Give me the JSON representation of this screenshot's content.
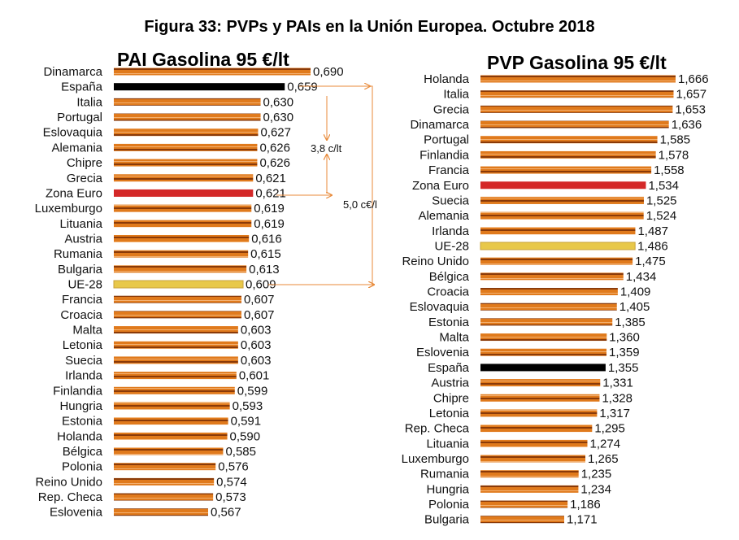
{
  "title": "Figura 33: PVPs y PAIs en la Unión Europea. Octubre 2018",
  "colors": {
    "default_bar": "#E07A1C",
    "default_stripe": "#8A3A08",
    "spain": "#000000",
    "euro_zone": "#D42828",
    "ue28": "#E8C84A",
    "annotation_line": "#E88A3A"
  },
  "annotations": {
    "diff_spain_eurozone": "3,8 c/lt",
    "diff_spain_ue28": "5,0 c€/l"
  },
  "chart_data": [
    {
      "type": "bar",
      "orientation": "horizontal",
      "title": "PAI Gasolina 95 €/lt",
      "categories": [
        "Dinamarca",
        "España",
        "Italia",
        "Portugal",
        "Eslovaquia",
        "Alemania",
        "Chipre",
        "Grecia",
        "Zona Euro",
        "Luxemburgo",
        "Lituania",
        "Austria",
        "Rumania",
        "Bulgaria",
        "UE-28",
        "Francia",
        "Croacia",
        "Malta",
        "Letonia",
        "Suecia",
        "Irlanda",
        "Finlandia",
        "Hungria",
        "Estonia",
        "Holanda",
        "Bélgica",
        "Polonia",
        "Reino Unido",
        "Rep. Checa",
        "Eslovenia"
      ],
      "values": [
        0.69,
        0.659,
        0.63,
        0.63,
        0.627,
        0.626,
        0.626,
        0.621,
        0.621,
        0.619,
        0.619,
        0.616,
        0.615,
        0.613,
        0.609,
        0.607,
        0.607,
        0.603,
        0.603,
        0.603,
        0.601,
        0.599,
        0.593,
        0.591,
        0.59,
        0.585,
        0.576,
        0.574,
        0.573,
        0.567
      ],
      "labels": [
        "0,690",
        "0,659",
        "0,630",
        "0,630",
        "0,627",
        "0,626",
        "0,626",
        "0,621",
        "0,621",
        "0,619",
        "0,619",
        "0,616",
        "0,615",
        "0,613",
        "0,609",
        "0,607",
        "0,607",
        "0,603",
        "0,603",
        "0,603",
        "0,601",
        "0,599",
        "0,593",
        "0,591",
        "0,590",
        "0,585",
        "0,576",
        "0,574",
        "0,573",
        "0,567"
      ],
      "highlights": {
        "España": "spain",
        "Zona Euro": "euro_zone",
        "UE-28": "ue28"
      }
    },
    {
      "type": "bar",
      "orientation": "horizontal",
      "title": "PVP Gasolina 95 €/lt",
      "categories": [
        "Holanda",
        "Italia",
        "Grecia",
        "Dinamarca",
        "Portugal",
        "Finlandia",
        "Francia",
        "Zona Euro",
        "Suecia",
        "Alemania",
        "Irlanda",
        "UE-28",
        "Reino Unido",
        "Bélgica",
        "Croacia",
        "Eslovaquia",
        "Estonia",
        "Malta",
        "Eslovenia",
        "España",
        "Austria",
        "Chipre",
        "Letonia",
        "Rep. Checa",
        "Lituania",
        "Luxemburgo",
        "Rumania",
        "Hungria",
        "Polonia",
        "Bulgaria"
      ],
      "values": [
        1.666,
        1.657,
        1.653,
        1.636,
        1.585,
        1.578,
        1.558,
        1.534,
        1.525,
        1.524,
        1.487,
        1.486,
        1.475,
        1.434,
        1.409,
        1.405,
        1.385,
        1.36,
        1.359,
        1.355,
        1.331,
        1.328,
        1.317,
        1.295,
        1.274,
        1.265,
        1.235,
        1.234,
        1.186,
        1.171
      ],
      "labels": [
        "1,666",
        "1,657",
        "1,653",
        "1,636",
        "1,585",
        "1,578",
        "1,558",
        "1,534",
        "1,525",
        "1,524",
        "1,487",
        "1,486",
        "1,475",
        "1,434",
        "1,409",
        "1,405",
        "1,385",
        "1,360",
        "1,359",
        "1,355",
        "1,331",
        "1,328",
        "1,317",
        "1,295",
        "1,274",
        "1,265",
        "1,235",
        "1,234",
        "1,186",
        "1,171"
      ],
      "highlights": {
        "España": "spain",
        "Zona Euro": "euro_zone",
        "UE-28": "ue28"
      }
    }
  ]
}
